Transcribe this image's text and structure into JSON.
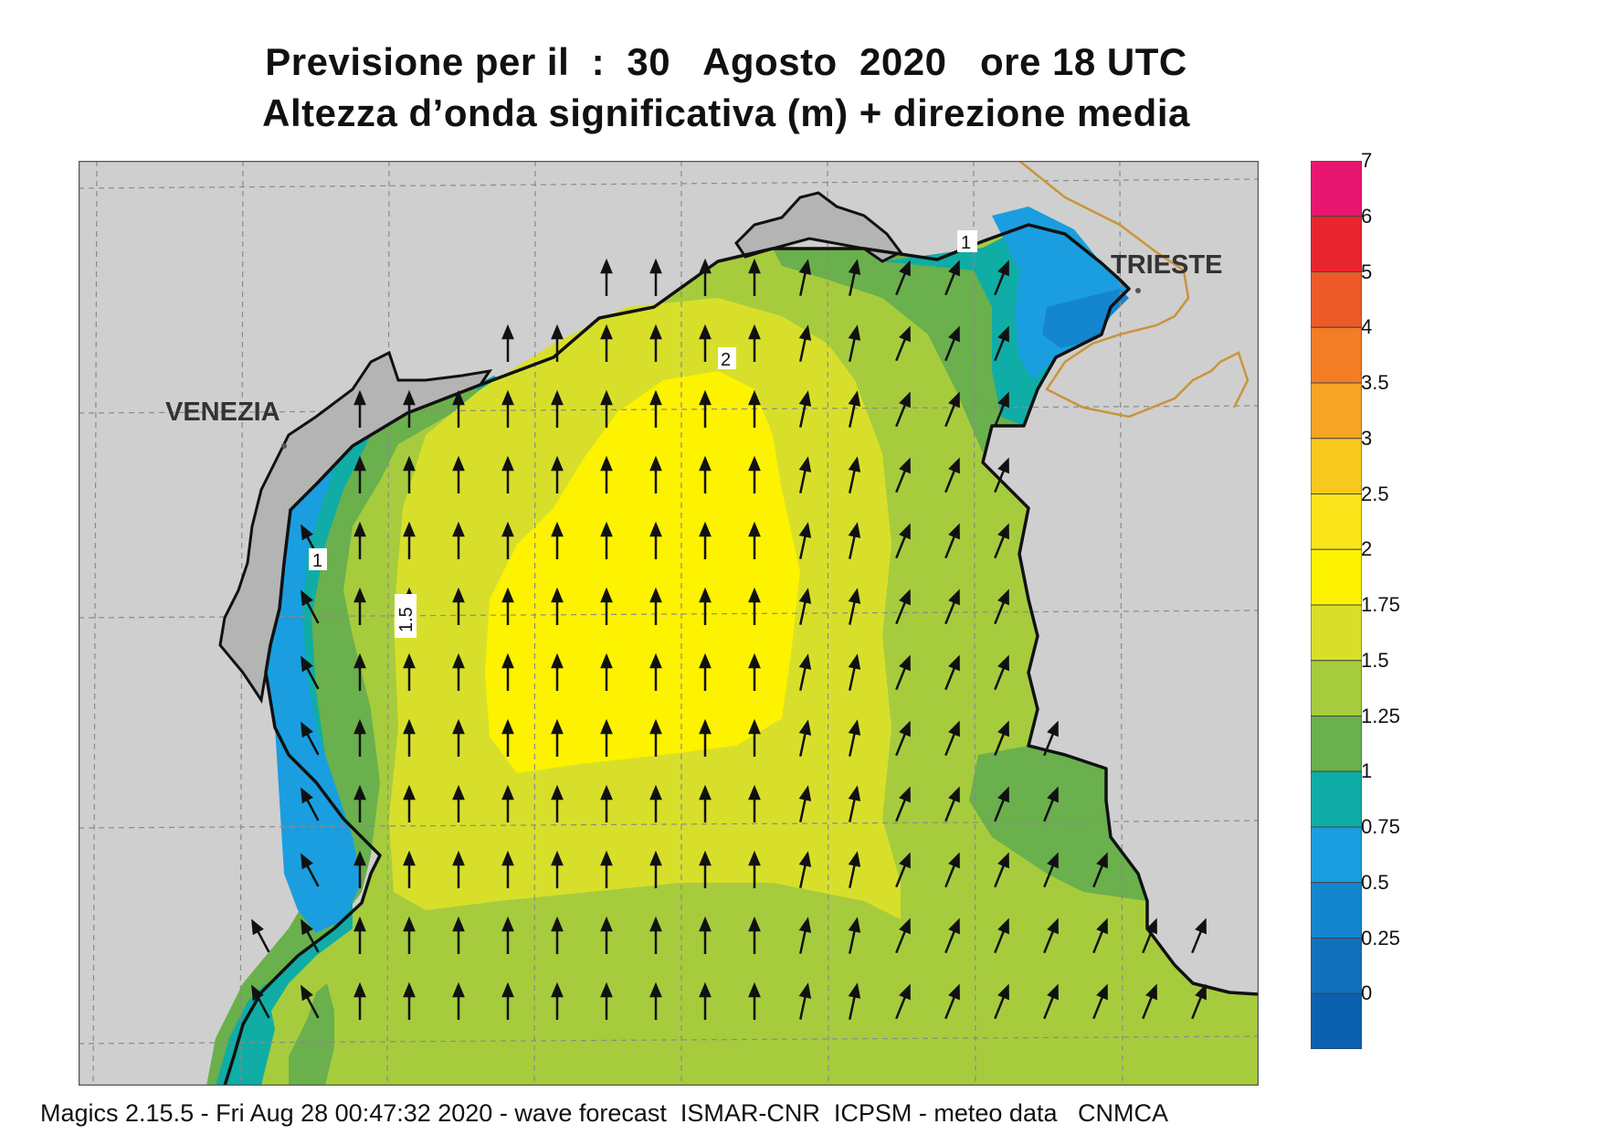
{
  "title_line1": "Previsione per il  :  30   Agosto  2020   ore 18 UTC",
  "title_line2": "Altezza d’onda significativa (m) + direzione media",
  "footer": "Magics 2.15.5 - Fri Aug 28 00:47:32 2020 - wave forecast  ISMAR-CNR  ICPSM - meteo data   CNMCA",
  "cities": {
    "venezia": "VENEZIA",
    "trieste": "TRIESTE"
  },
  "contour_labels": {
    "c1_north": "1",
    "c2": "2",
    "c1_west": "1",
    "c15": "1.5"
  },
  "colorbar": {
    "labels": [
      "7",
      "6",
      "5",
      "4",
      "3.5",
      "3",
      "2.5",
      "2",
      "1.75",
      "1.5",
      "1.25",
      "1",
      "0.75",
      "0.5",
      "0.25",
      "0"
    ],
    "colors": [
      "#e8166f",
      "#e8252e",
      "#ee5a27",
      "#f27d25",
      "#f5a523",
      "#f8c81c",
      "#fbe51a",
      "#fdf200",
      "#d8df2b",
      "#a6cc3d",
      "#6ab04c",
      "#0fada6",
      "#1a9ee0",
      "#1485cf",
      "#1271bc",
      "#0b60b0"
    ]
  },
  "map_colors": {
    "land": "#cfcfcf",
    "coast": "#111111",
    "border": "#c9943a",
    "grid": "#8a8a8a"
  }
}
